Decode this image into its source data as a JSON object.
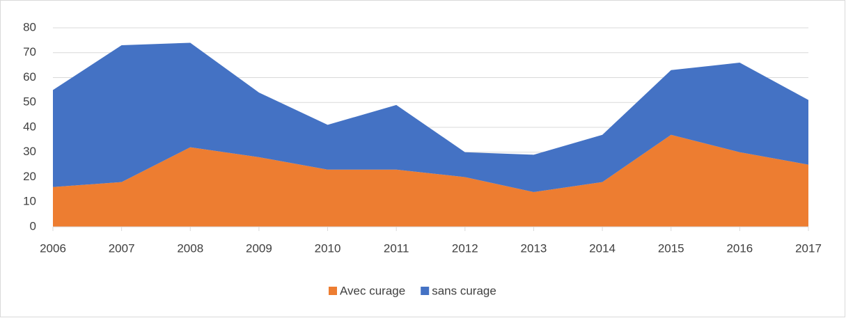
{
  "chart_data": {
    "type": "stacked-area",
    "categories": [
      "2006",
      "2007",
      "2008",
      "2009",
      "2010",
      "2011",
      "2012",
      "2013",
      "2014",
      "2015",
      "2016",
      "2017"
    ],
    "series": [
      {
        "name": "Avec curage",
        "color": "#ed7d31",
        "values": [
          16,
          18,
          32,
          28,
          23,
          23,
          20,
          14,
          18,
          37,
          30,
          25
        ]
      },
      {
        "name": "sans curage",
        "color": "#4472c4",
        "values": [
          39,
          55,
          42,
          26,
          18,
          26,
          10,
          15,
          19,
          26,
          36,
          26
        ]
      }
    ],
    "ylim": [
      0,
      80
    ],
    "yticks": [
      0,
      10,
      20,
      30,
      40,
      50,
      60,
      70,
      80
    ],
    "grid": true,
    "legend": "bottom"
  }
}
